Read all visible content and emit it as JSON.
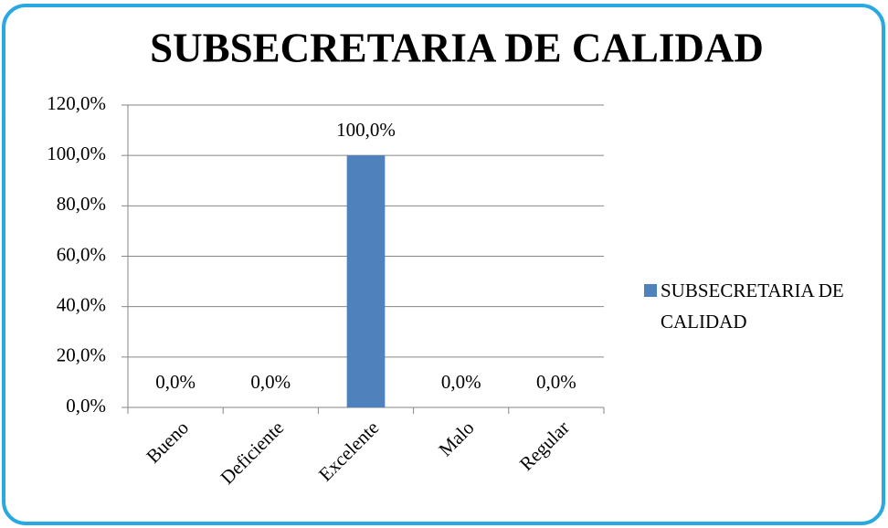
{
  "chart_data": {
    "type": "bar",
    "title": "SUBSECRETARIA DE CALIDAD",
    "categories": [
      "Bueno",
      "Deficiente",
      "Excelente",
      "Malo",
      "Regular"
    ],
    "series": [
      {
        "name": "SUBSECRETARIA DE CALIDAD",
        "color": "#4f81bd",
        "values": [
          0,
          0,
          100,
          0,
          0
        ],
        "value_labels": [
          "0,0%",
          "0,0%",
          "100,0%",
          "0,0%",
          "0,0%"
        ]
      }
    ],
    "ylim": [
      0,
      120
    ],
    "yticks": [
      {
        "value": 0,
        "label": "0,0%"
      },
      {
        "value": 20,
        "label": "20,0%"
      },
      {
        "value": 40,
        "label": "40,0%"
      },
      {
        "value": 60,
        "label": "60,0%"
      },
      {
        "value": 80,
        "label": "80,0%"
      },
      {
        "value": 100,
        "label": "100,0%"
      },
      {
        "value": 120,
        "label": "120,0%"
      }
    ],
    "grid": true,
    "legend": "right"
  }
}
